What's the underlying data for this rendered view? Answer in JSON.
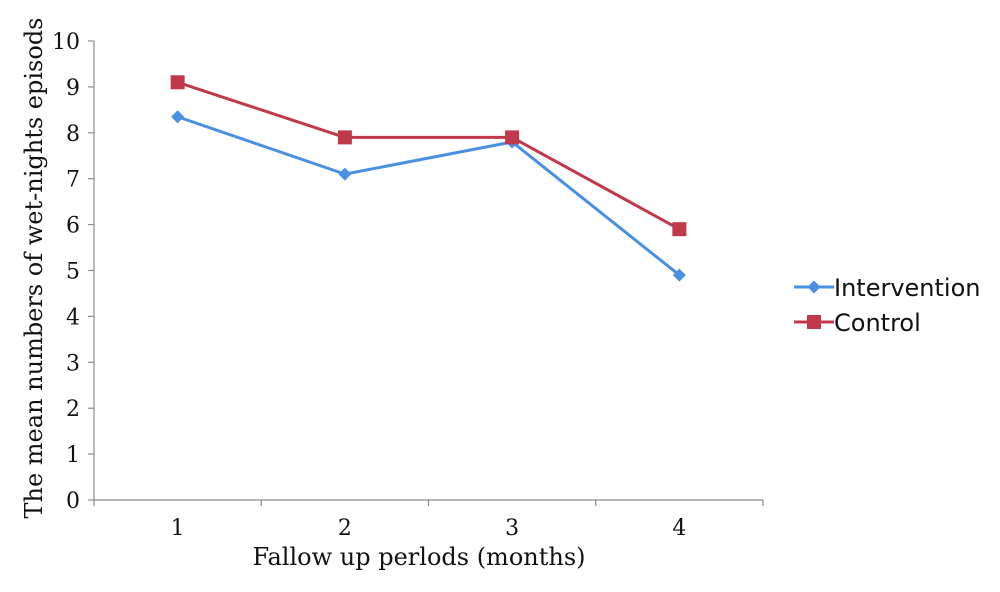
{
  "chart_data": {
    "type": "line",
    "title": "",
    "xlabel": "Fallow up perlods (months)",
    "ylabel": "The mean numbers of wet-nights episods",
    "categories": [
      "1",
      "2",
      "3",
      "4"
    ],
    "ylim": [
      0,
      10
    ],
    "yticks": [
      "0",
      "1",
      "2",
      "3",
      "4",
      "5",
      "6",
      "7",
      "8",
      "9",
      "10"
    ],
    "grid": false,
    "legend_position": "right",
    "series": [
      {
        "name": "Intervention",
        "values": [
          8.35,
          7.1,
          7.8,
          4.9
        ],
        "color": "#4A90E2",
        "marker": "diamond"
      },
      {
        "name": "Control",
        "values": [
          9.1,
          7.9,
          7.9,
          5.9
        ],
        "color": "#C0394B",
        "marker": "square"
      }
    ]
  }
}
